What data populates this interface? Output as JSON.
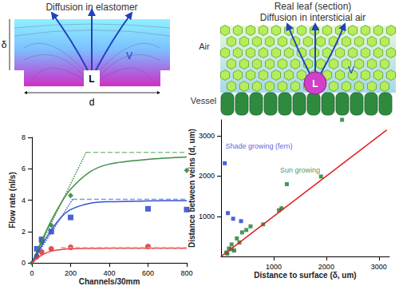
{
  "diagrams": [
    {
      "title": "Diffusion in elastomer",
      "labels": {
        "thickness": "δ",
        "spacing": "d",
        "channel": "L",
        "vapor": "V"
      }
    },
    {
      "title": "Real leaf (section)",
      "subtitle": "Diffusion in intersticial air",
      "labels": {
        "air": "Air",
        "vessel": "Vessel",
        "vein": "L",
        "vapor": "V"
      }
    }
  ],
  "chart_data": [
    {
      "type": "line",
      "xlabel": "Channels/30mm",
      "ylabel": "Flow rate (nl/s)",
      "xlim": [
        0,
        800
      ],
      "xticks": [
        0,
        200,
        400,
        600,
        800
      ],
      "ylim": [
        0,
        8
      ],
      "yticks": [
        0,
        2,
        4,
        6,
        8
      ],
      "grid": false,
      "series": [
        {
          "type": "scatter",
          "marker": "diamond",
          "color": "#1e7a2e",
          "x": [
            0,
            25,
            50,
            100,
            200,
            800
          ],
          "values": [
            0,
            0.5,
            1.3,
            2.4,
            4.3,
            5.9
          ]
        },
        {
          "type": "line",
          "line_style": "solid",
          "color": "#3c8c44",
          "x": [
            0,
            50,
            100,
            150,
            200,
            300,
            400,
            600,
            800
          ],
          "values": [
            0,
            1.4,
            2.7,
            3.8,
            4.7,
            5.8,
            6.3,
            6.6,
            6.75
          ]
        },
        {
          "type": "line",
          "line_style": "dashed",
          "color": "#8cbf8c",
          "x": [
            280,
            800
          ],
          "values": [
            7.05,
            7.05
          ]
        },
        {
          "type": "line",
          "line_style": "dotted",
          "color": "#3c8c44",
          "x": [
            0,
            280
          ],
          "values": [
            0,
            7.05
          ]
        },
        {
          "type": "scatter",
          "marker": "square",
          "color": "#1f3cc8",
          "x": [
            25,
            50,
            100,
            200,
            600,
            800
          ],
          "values": [
            0.9,
            1.5,
            2.0,
            2.9,
            3.45,
            3.4
          ]
        },
        {
          "type": "line",
          "line_style": "solid",
          "color": "#3355d0",
          "x": [
            0,
            50,
            100,
            150,
            200,
            300,
            400,
            600,
            800
          ],
          "values": [
            0,
            1.1,
            2.1,
            2.9,
            3.4,
            3.8,
            3.9,
            3.95,
            3.97
          ]
        },
        {
          "type": "line",
          "line_style": "dashed",
          "color": "#7f95e8",
          "x": [
            210,
            800
          ],
          "values": [
            4.05,
            4.05
          ]
        },
        {
          "type": "line",
          "line_style": "dotted",
          "color": "#3355d0",
          "x": [
            0,
            210
          ],
          "values": [
            0,
            4.05
          ]
        },
        {
          "type": "scatter",
          "marker": "circle",
          "color": "#e02020",
          "x": [
            25,
            50,
            100,
            200,
            600
          ],
          "values": [
            0.4,
            0.7,
            0.9,
            1.0,
            1.05
          ]
        },
        {
          "type": "line",
          "line_style": "solid",
          "color": "#e84040",
          "x": [
            0,
            50,
            100,
            150,
            200,
            300,
            400,
            600,
            800
          ],
          "values": [
            0,
            0.5,
            0.75,
            0.85,
            0.9,
            0.92,
            0.93,
            0.93,
            0.93
          ]
        },
        {
          "type": "line",
          "line_style": "dashed",
          "color": "#f09090",
          "x": [
            150,
            800
          ],
          "values": [
            0.97,
            0.97
          ]
        }
      ]
    },
    {
      "type": "scatter",
      "xlabel": "Distance to surface (δ, um)",
      "ylabel": "Distance between veins (d, um)",
      "xlim": [
        0,
        3200
      ],
      "xticks": [
        1000,
        2000,
        3000
      ],
      "ylim": [
        0,
        3400
      ],
      "yticks": [
        1000,
        2000,
        3000
      ],
      "grid": false,
      "series": [
        {
          "type": "scatter",
          "marker": "square",
          "color": "#1f3cc8",
          "x": [
            70,
            130,
            230,
            380
          ],
          "values": [
            2320,
            1080,
            940,
            880
          ]
        },
        {
          "type": "scatter",
          "marker": "square",
          "color": "#1e7a2e",
          "x": [
            100,
            120,
            150,
            200,
            200,
            250,
            300,
            350,
            400,
            480,
            560,
            800,
            1100,
            1150,
            1250,
            1900,
            2300
          ],
          "values": [
            100,
            70,
            200,
            300,
            180,
            150,
            450,
            350,
            600,
            660,
            750,
            800,
            1150,
            1200,
            1800,
            1990,
            3400
          ]
        },
        {
          "type": "line",
          "line_style": "solid",
          "color": "#e02020",
          "x": [
            0,
            3150
          ],
          "values": [
            0,
            3150
          ]
        }
      ],
      "annotations": [
        {
          "text": "Shade growing (fern)",
          "x": 720,
          "y": 2750,
          "color": "#2a3ad0"
        },
        {
          "text": "Sun growing",
          "x": 1500,
          "y": 2150,
          "color": "#1e7a2e"
        }
      ]
    }
  ]
}
